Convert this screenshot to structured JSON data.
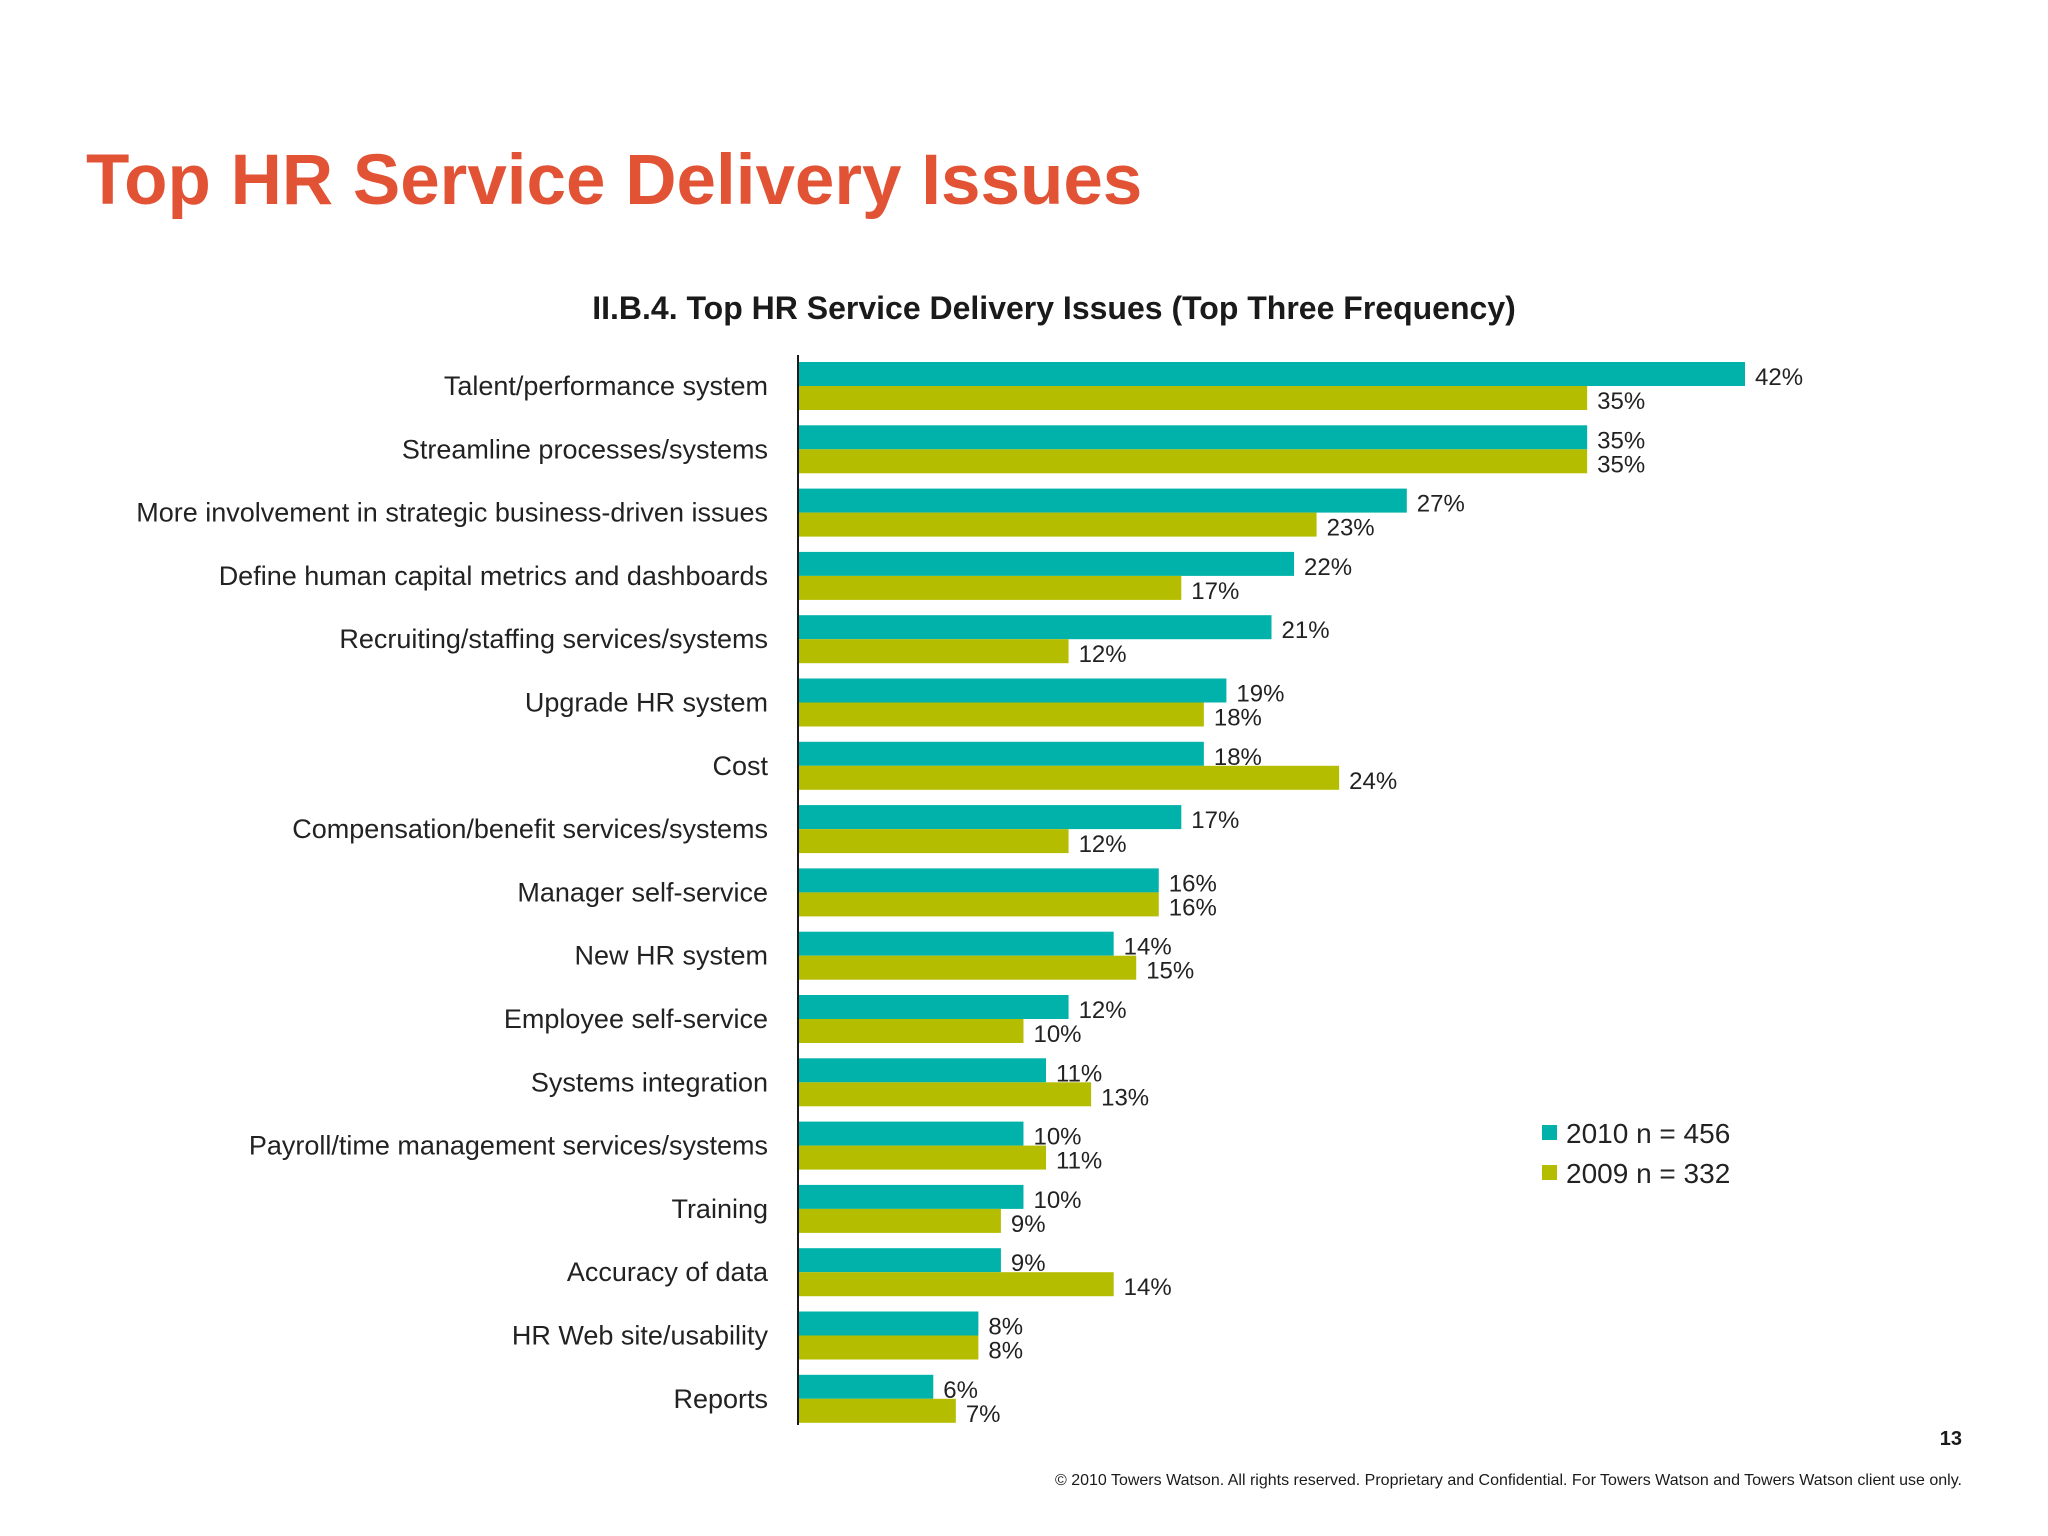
{
  "slide": {
    "title": "Top HR Service Delivery Issues",
    "page_number": "13",
    "copyright": "© 2010 Towers Watson. All rights reserved. Proprietary and Confidential. For Towers Watson and Towers Watson client use only."
  },
  "colors": {
    "title": "#E25335",
    "series_2010": "#00B2A9",
    "series_2009": "#B5BD00"
  },
  "chart_data": {
    "type": "bar",
    "orientation": "horizontal",
    "title": "II.B.4. Top HR Service Delivery Issues (Top Three Frequency)",
    "categories": [
      "Talent/performance system",
      "Streamline processes/systems",
      "More involvement in strategic business-driven issues",
      "Define human capital metrics and dashboards",
      "Recruiting/staffing services/systems",
      "Upgrade HR system",
      "Cost",
      "Compensation/benefit services/systems",
      "Manager self-service",
      "New HR system",
      "Employee self-service",
      "Systems integration",
      "Payroll/time management services/systems",
      "Training",
      "Accuracy of data",
      "HR Web site/usability",
      "Reports"
    ],
    "series": [
      {
        "name": "2010 n = 456",
        "color": "#00B2A9",
        "values": [
          42,
          35,
          27,
          22,
          21,
          19,
          18,
          17,
          16,
          14,
          12,
          11,
          10,
          10,
          9,
          8,
          6
        ]
      },
      {
        "name": "2009 n = 332",
        "color": "#B5BD00",
        "values": [
          35,
          35,
          23,
          17,
          12,
          18,
          24,
          12,
          16,
          15,
          10,
          13,
          11,
          9,
          14,
          8,
          7
        ]
      }
    ],
    "value_suffix": "%",
    "xlim": [
      0,
      42
    ],
    "grid": false,
    "legend_position": "lower-right"
  }
}
